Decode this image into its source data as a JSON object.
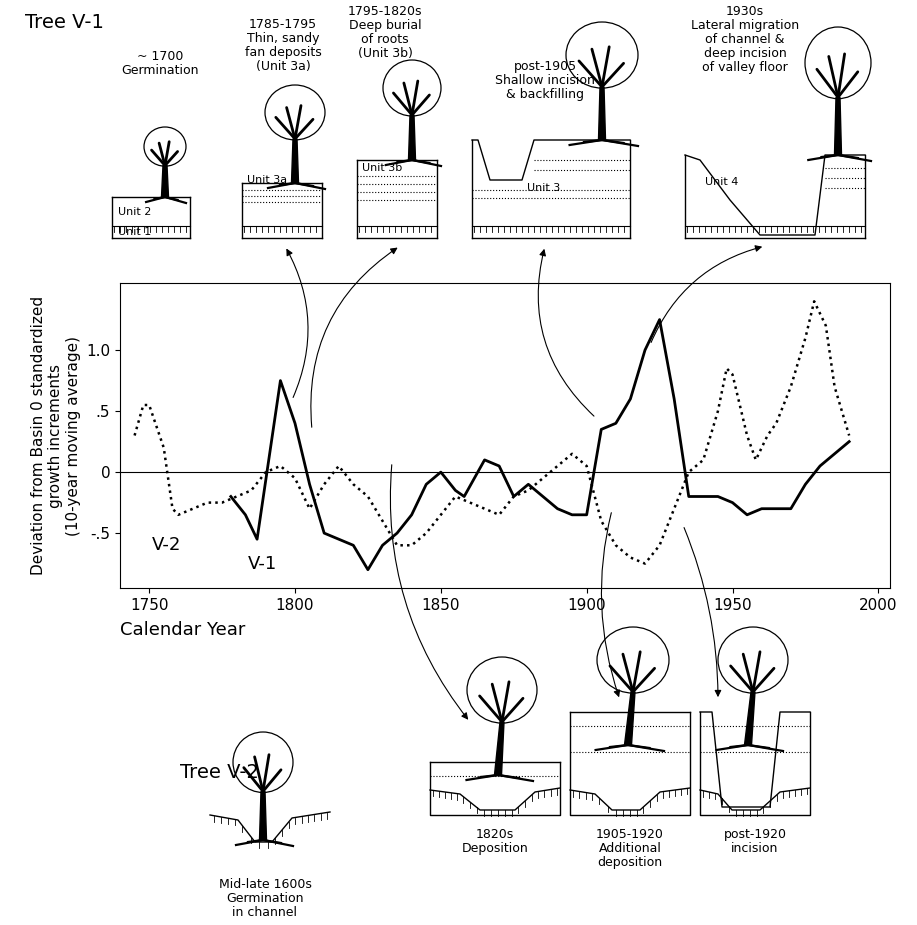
{
  "chart_data": {
    "type": "line",
    "x_label": "Calendar Year",
    "y_label": "Deviation from Basin 0 standardized\ngrowth increments\n(10-year moving average)",
    "xlim": [
      1740,
      2004
    ],
    "xticks": [
      1750,
      1800,
      1850,
      1900,
      1950,
      2000
    ],
    "ylim": [
      -0.95,
      1.55
    ],
    "yticks": [
      {
        "value": -0.5,
        "label": "-.5"
      },
      {
        "value": 0,
        "label": "0"
      },
      {
        "value": 0.5,
        "label": ".5"
      },
      {
        "value": 1.0,
        "label": "1.0"
      }
    ],
    "grid": false,
    "series": [
      {
        "name": "V-1",
        "color": "#000000",
        "line_style": "solid",
        "x": [
          1778,
          1783,
          1787,
          1791,
          1795,
          1800,
          1805,
          1810,
          1815,
          1820,
          1825,
          1830,
          1835,
          1840,
          1845,
          1850,
          1855,
          1858,
          1865,
          1870,
          1875,
          1880,
          1885,
          1890,
          1895,
          1900,
          1905,
          1910,
          1915,
          1920,
          1925,
          1930,
          1935,
          1940,
          1945,
          1950,
          1955,
          1960,
          1965,
          1970,
          1975,
          1980,
          1985,
          1990
        ],
        "values": [
          -0.2,
          -0.35,
          -0.55,
          0.1,
          0.75,
          0.4,
          -0.1,
          -0.5,
          -0.55,
          -0.6,
          -0.8,
          -0.6,
          -0.5,
          -0.35,
          -0.1,
          0.0,
          -0.15,
          -0.2,
          0.1,
          0.05,
          -0.2,
          -0.1,
          -0.2,
          -0.3,
          -0.35,
          -0.35,
          0.35,
          0.4,
          0.6,
          1.0,
          1.25,
          0.6,
          -0.2,
          -0.2,
          -0.2,
          -0.25,
          -0.35,
          -0.3,
          -0.3,
          -0.3,
          -0.1,
          0.05,
          0.15,
          0.25
        ]
      },
      {
        "name": "V-2",
        "color": "#000000",
        "line_style": "dotted",
        "x": [
          1745,
          1748,
          1750,
          1755,
          1758,
          1760,
          1765,
          1770,
          1775,
          1780,
          1785,
          1790,
          1795,
          1800,
          1805,
          1810,
          1815,
          1820,
          1825,
          1830,
          1835,
          1840,
          1845,
          1850,
          1855,
          1860,
          1865,
          1870,
          1875,
          1880,
          1885,
          1890,
          1895,
          1900,
          1905,
          1910,
          1915,
          1920,
          1925,
          1930,
          1935,
          1940,
          1945,
          1948,
          1950,
          1955,
          1958,
          1962,
          1965,
          1970,
          1975,
          1978,
          1982,
          1985,
          1990
        ],
        "values": [
          0.3,
          0.55,
          0.55,
          0.2,
          -0.3,
          -0.35,
          -0.3,
          -0.25,
          -0.25,
          -0.2,
          -0.15,
          0.0,
          0.05,
          -0.05,
          -0.3,
          -0.1,
          0.05,
          -0.1,
          -0.2,
          -0.4,
          -0.6,
          -0.6,
          -0.5,
          -0.35,
          -0.2,
          -0.25,
          -0.3,
          -0.35,
          -0.2,
          -0.15,
          -0.05,
          0.05,
          0.15,
          0.05,
          -0.4,
          -0.6,
          -0.7,
          -0.75,
          -0.6,
          -0.3,
          0.0,
          0.1,
          0.5,
          0.85,
          0.8,
          0.3,
          0.1,
          0.3,
          0.4,
          0.7,
          1.1,
          1.4,
          1.2,
          0.7,
          0.3
        ]
      }
    ]
  },
  "diagram": {
    "top_title": "Tree V-1",
    "top_panels": [
      {
        "caption": "~ 1700\nGermination",
        "units": [
          "Unit 2",
          "Unit 1"
        ]
      },
      {
        "caption": "1785-1795\nThin, sandy\nfan deposits\n(Unit 3a)",
        "units": [
          "Unit 3a"
        ]
      },
      {
        "caption": "1795-1820s\nDeep burial\nof roots\n(Unit 3b)",
        "units": [
          "Unit 3b"
        ]
      },
      {
        "caption": "post-1905\nShallow incision\n& backfilling",
        "units": [
          "Unit 3"
        ]
      },
      {
        "caption": "1930s\nLateral migration\nof channel &\ndeep incision\nof valley floor",
        "units": [
          "Unit 4"
        ]
      }
    ],
    "bottom_title": "Tree V-2",
    "bottom_panels": [
      {
        "caption": "Mid-late 1600s\nGermination\nin channel"
      },
      {
        "caption": "1820s\nDeposition"
      },
      {
        "caption": "1905-1920\nAdditional\ndeposition"
      },
      {
        "caption": "post-1920\nincision"
      }
    ]
  }
}
